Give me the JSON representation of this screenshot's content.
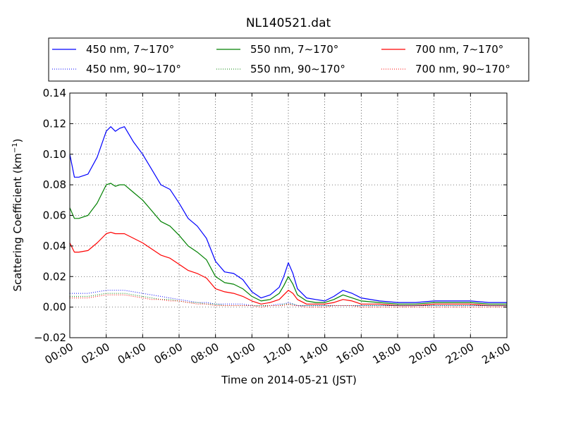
{
  "chart_data": {
    "type": "line",
    "title": "NL140521.dat",
    "xlabel": "Time on 2014-05-21 (JST)",
    "ylabel": "Scattering Coefficient (km",
    "ylabel_superscript": "−1",
    "ylabel_close": ")",
    "x_unit": "hours",
    "xlim": [
      0,
      24
    ],
    "ylim": [
      -0.02,
      0.14
    ],
    "x_ticks": [
      0,
      2,
      4,
      6,
      8,
      10,
      12,
      14,
      16,
      18,
      20,
      22,
      24
    ],
    "x_tick_labels": [
      "00:00",
      "02:00",
      "04:00",
      "06:00",
      "08:00",
      "10:00",
      "12:00",
      "14:00",
      "16:00",
      "18:00",
      "20:00",
      "22:00",
      "24:00"
    ],
    "y_ticks": [
      -0.02,
      0.0,
      0.02,
      0.04,
      0.06,
      0.08,
      0.1,
      0.12,
      0.14
    ],
    "y_tick_labels": [
      "−0.02",
      "0.00",
      "0.02",
      "0.04",
      "0.06",
      "0.08",
      "0.10",
      "0.12",
      "0.14"
    ],
    "grid": true,
    "grid_style": "dotted",
    "legend_position": "top",
    "colors": {
      "blue": "#0000ff",
      "green": "#008000",
      "red": "#ff0000"
    },
    "x": [
      0,
      0.25,
      0.5,
      1,
      1.5,
      2,
      2.25,
      2.5,
      2.75,
      3,
      3.5,
      4,
      4.5,
      5,
      5.5,
      6,
      6.5,
      7,
      7.5,
      8,
      8.5,
      9,
      9.5,
      10,
      10.5,
      11,
      11.5,
      11.75,
      12,
      12.25,
      12.5,
      13,
      13.5,
      14,
      14.5,
      15,
      15.5,
      16,
      17,
      18,
      19,
      20,
      21,
      22,
      23,
      24
    ],
    "series": [
      {
        "name": "450 nm, 7∼170°",
        "color": "#0000ff",
        "style": "solid",
        "values": [
          0.1,
          0.085,
          0.085,
          0.087,
          0.098,
          0.115,
          0.118,
          0.115,
          0.117,
          0.118,
          0.108,
          0.1,
          0.09,
          0.08,
          0.077,
          0.068,
          0.058,
          0.053,
          0.045,
          0.03,
          0.023,
          0.022,
          0.018,
          0.01,
          0.006,
          0.008,
          0.013,
          0.02,
          0.029,
          0.022,
          0.012,
          0.006,
          0.005,
          0.004,
          0.007,
          0.011,
          0.009,
          0.006,
          0.004,
          0.003,
          0.003,
          0.004,
          0.004,
          0.004,
          0.003,
          0.003
        ]
      },
      {
        "name": "550 nm, 7∼170°",
        "color": "#008000",
        "style": "solid",
        "values": [
          0.065,
          0.058,
          0.058,
          0.06,
          0.068,
          0.08,
          0.081,
          0.079,
          0.08,
          0.08,
          0.075,
          0.07,
          0.063,
          0.056,
          0.053,
          0.047,
          0.04,
          0.036,
          0.031,
          0.02,
          0.016,
          0.015,
          0.012,
          0.007,
          0.004,
          0.005,
          0.009,
          0.014,
          0.02,
          0.015,
          0.008,
          0.004,
          0.003,
          0.003,
          0.005,
          0.008,
          0.006,
          0.004,
          0.003,
          0.002,
          0.002,
          0.003,
          0.003,
          0.003,
          0.002,
          0.002
        ]
      },
      {
        "name": "700 nm, 7∼170°",
        "color": "#ff0000",
        "style": "solid",
        "values": [
          0.042,
          0.036,
          0.036,
          0.037,
          0.042,
          0.048,
          0.049,
          0.048,
          0.048,
          0.048,
          0.045,
          0.042,
          0.038,
          0.034,
          0.032,
          0.028,
          0.024,
          0.022,
          0.019,
          0.012,
          0.01,
          0.009,
          0.007,
          0.004,
          0.002,
          0.003,
          0.005,
          0.008,
          0.011,
          0.009,
          0.005,
          0.002,
          0.002,
          0.002,
          0.003,
          0.005,
          0.004,
          0.002,
          0.002,
          0.001,
          0.001,
          0.002,
          0.002,
          0.002,
          0.001,
          0.001
        ]
      },
      {
        "name": "450 nm, 90∼170°",
        "color": "#0000ff",
        "style": "dotted",
        "values": [
          0.009,
          0.009,
          0.009,
          0.009,
          0.01,
          0.011,
          0.011,
          0.011,
          0.011,
          0.011,
          0.01,
          0.009,
          0.008,
          0.007,
          0.006,
          0.005,
          0.004,
          0.003,
          0.003,
          0.002,
          0.002,
          0.002,
          0.002,
          0.001,
          0.001,
          0.001,
          0.002,
          0.002,
          0.003,
          0.002,
          0.001,
          0.001,
          0.001,
          0.001,
          0.001,
          0.001,
          0.001,
          0.001,
          0.001,
          0.001,
          0.001,
          0.001,
          0.001,
          0.001,
          0.001,
          0.001
        ]
      },
      {
        "name": "550 nm, 90∼170°",
        "color": "#008000",
        "style": "dotted",
        "values": [
          0.007,
          0.007,
          0.007,
          0.007,
          0.008,
          0.009,
          0.009,
          0.009,
          0.009,
          0.009,
          0.008,
          0.007,
          0.006,
          0.005,
          0.005,
          0.004,
          0.003,
          0.003,
          0.002,
          0.002,
          0.001,
          0.001,
          0.001,
          0.001,
          0.001,
          0.001,
          0.001,
          0.002,
          0.002,
          0.002,
          0.001,
          0.001,
          0.001,
          0.001,
          0.001,
          0.001,
          0.001,
          0.001,
          0.001,
          0.001,
          0.001,
          0.001,
          0.001,
          0.001,
          0.001,
          0.001
        ]
      },
      {
        "name": "700 nm, 90∼170°",
        "color": "#ff0000",
        "style": "dotted",
        "values": [
          0.006,
          0.006,
          0.006,
          0.006,
          0.007,
          0.008,
          0.008,
          0.008,
          0.008,
          0.008,
          0.007,
          0.006,
          0.005,
          0.005,
          0.004,
          0.004,
          0.003,
          0.002,
          0.002,
          0.001,
          0.001,
          0.001,
          0.001,
          0.001,
          0.0,
          0.001,
          0.001,
          0.001,
          0.002,
          0.001,
          0.001,
          0.0,
          0.0,
          0.0,
          0.001,
          0.001,
          0.001,
          0.0,
          0.0,
          0.0,
          0.0,
          0.0,
          0.0,
          0.0,
          0.0,
          0.0
        ]
      }
    ],
    "legend_order": [
      0,
      1,
      2,
      3,
      4,
      5
    ]
  }
}
